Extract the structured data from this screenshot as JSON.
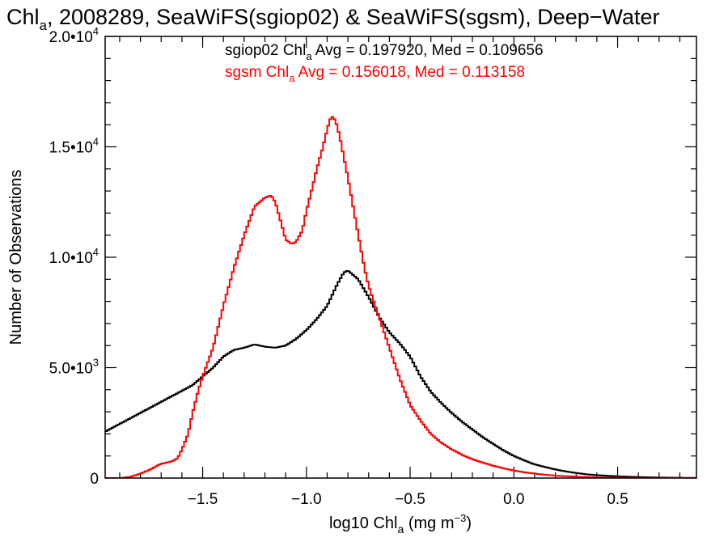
{
  "chart_data": {
    "type": "line",
    "title": {
      "prefix": "Chl",
      "sub": "a",
      "rest": ", 2008289, SeaWiFS(sgiop02) & SeaWiFS(sgsm), Deep−Water"
    },
    "xlabel": {
      "prefix": "log10 Chl",
      "sub": "a",
      "mid": " (mg m",
      "sup": "−3",
      "suffix": ")"
    },
    "ylabel": "Number of Observations",
    "xlim": [
      -1.97,
      0.88
    ],
    "ylim": [
      0,
      20000
    ],
    "x_ticks": [
      {
        "value": -1.5,
        "label": "−1.5"
      },
      {
        "value": -1.0,
        "label": "−1.0"
      },
      {
        "value": -0.5,
        "label": "−0.5"
      },
      {
        "value": 0.0,
        "label": "0.0"
      },
      {
        "value": 0.5,
        "label": "0.5"
      }
    ],
    "y_ticks": [
      {
        "value": 0,
        "base": "0",
        "exp": ""
      },
      {
        "value": 5000,
        "base": "5.0•10",
        "exp": "3"
      },
      {
        "value": 10000,
        "base": "1.0•10",
        "exp": "4"
      },
      {
        "value": 15000,
        "base": "1.5•10",
        "exp": "4"
      },
      {
        "value": 20000,
        "base": "2.0•10",
        "exp": "4"
      }
    ],
    "legend": [
      {
        "name": "sgiop02",
        "color": "#000000",
        "prefix": "sgiop02 Chl",
        "sub": "a",
        "text": " Avg = 0.197920, Med = 0.109656"
      },
      {
        "name": "sgsm",
        "color": "#ff0000",
        "prefix": "sgsm Chl",
        "sub": "a",
        "text": " Avg = 0.156018, Med = 0.113158"
      }
    ],
    "series": [
      {
        "name": "sgiop02",
        "color": "#000000",
        "points": [
          [
            -1.97,
            2100
          ],
          [
            -1.85,
            2700
          ],
          [
            -1.75,
            3200
          ],
          [
            -1.65,
            3700
          ],
          [
            -1.55,
            4200
          ],
          [
            -1.5,
            4600
          ],
          [
            -1.45,
            5000
          ],
          [
            -1.4,
            5500
          ],
          [
            -1.35,
            5800
          ],
          [
            -1.3,
            5900
          ],
          [
            -1.25,
            6050
          ],
          [
            -1.2,
            5950
          ],
          [
            -1.15,
            5900
          ],
          [
            -1.1,
            6000
          ],
          [
            -1.05,
            6300
          ],
          [
            -1.0,
            6700
          ],
          [
            -0.95,
            7200
          ],
          [
            -0.9,
            7800
          ],
          [
            -0.85,
            8800
          ],
          [
            -0.82,
            9300
          ],
          [
            -0.8,
            9400
          ],
          [
            -0.75,
            9000
          ],
          [
            -0.7,
            8200
          ],
          [
            -0.65,
            7300
          ],
          [
            -0.6,
            6600
          ],
          [
            -0.55,
            6100
          ],
          [
            -0.5,
            5500
          ],
          [
            -0.45,
            4600
          ],
          [
            -0.4,
            3900
          ],
          [
            -0.35,
            3400
          ],
          [
            -0.3,
            2950
          ],
          [
            -0.25,
            2550
          ],
          [
            -0.2,
            2200
          ],
          [
            -0.15,
            1850
          ],
          [
            -0.1,
            1550
          ],
          [
            -0.05,
            1250
          ],
          [
            0.0,
            1000
          ],
          [
            0.05,
            800
          ],
          [
            0.1,
            620
          ],
          [
            0.15,
            500
          ],
          [
            0.2,
            390
          ],
          [
            0.25,
            300
          ],
          [
            0.3,
            230
          ],
          [
            0.35,
            170
          ],
          [
            0.4,
            130
          ],
          [
            0.5,
            80
          ],
          [
            0.6,
            45
          ],
          [
            0.7,
            25
          ],
          [
            0.8,
            12
          ],
          [
            0.88,
            6
          ]
        ]
      },
      {
        "name": "sgsm",
        "color": "#ff0000",
        "points": [
          [
            -1.97,
            0
          ],
          [
            -1.9,
            0
          ],
          [
            -1.85,
            50
          ],
          [
            -1.8,
            200
          ],
          [
            -1.75,
            400
          ],
          [
            -1.7,
            650
          ],
          [
            -1.65,
            750
          ],
          [
            -1.62,
            900
          ],
          [
            -1.6,
            1300
          ],
          [
            -1.57,
            2000
          ],
          [
            -1.55,
            2900
          ],
          [
            -1.52,
            4000
          ],
          [
            -1.5,
            4600
          ],
          [
            -1.45,
            5900
          ],
          [
            -1.4,
            7800
          ],
          [
            -1.35,
            9500
          ],
          [
            -1.3,
            11000
          ],
          [
            -1.25,
            12300
          ],
          [
            -1.2,
            12700
          ],
          [
            -1.17,
            12800
          ],
          [
            -1.15,
            12500
          ],
          [
            -1.12,
            11500
          ],
          [
            -1.1,
            10800
          ],
          [
            -1.07,
            10600
          ],
          [
            -1.05,
            10700
          ],
          [
            -1.02,
            11200
          ],
          [
            -1.0,
            12100
          ],
          [
            -0.97,
            13200
          ],
          [
            -0.95,
            14000
          ],
          [
            -0.92,
            15000
          ],
          [
            -0.9,
            15800
          ],
          [
            -0.88,
            16400
          ],
          [
            -0.86,
            16200
          ],
          [
            -0.84,
            15500
          ],
          [
            -0.8,
            13600
          ],
          [
            -0.75,
            11000
          ],
          [
            -0.72,
            9500
          ],
          [
            -0.7,
            8700
          ],
          [
            -0.65,
            7300
          ],
          [
            -0.6,
            5900
          ],
          [
            -0.55,
            4500
          ],
          [
            -0.5,
            3300
          ],
          [
            -0.45,
            2600
          ],
          [
            -0.4,
            2000
          ],
          [
            -0.35,
            1600
          ],
          [
            -0.3,
            1300
          ],
          [
            -0.25,
            1050
          ],
          [
            -0.2,
            850
          ],
          [
            -0.15,
            700
          ],
          [
            -0.1,
            560
          ],
          [
            -0.05,
            440
          ],
          [
            0.0,
            340
          ],
          [
            0.05,
            260
          ],
          [
            0.1,
            200
          ],
          [
            0.15,
            150
          ],
          [
            0.2,
            110
          ],
          [
            0.3,
            60
          ],
          [
            0.4,
            30
          ],
          [
            0.5,
            15
          ],
          [
            0.6,
            6
          ],
          [
            0.88,
            0
          ]
        ]
      }
    ]
  }
}
